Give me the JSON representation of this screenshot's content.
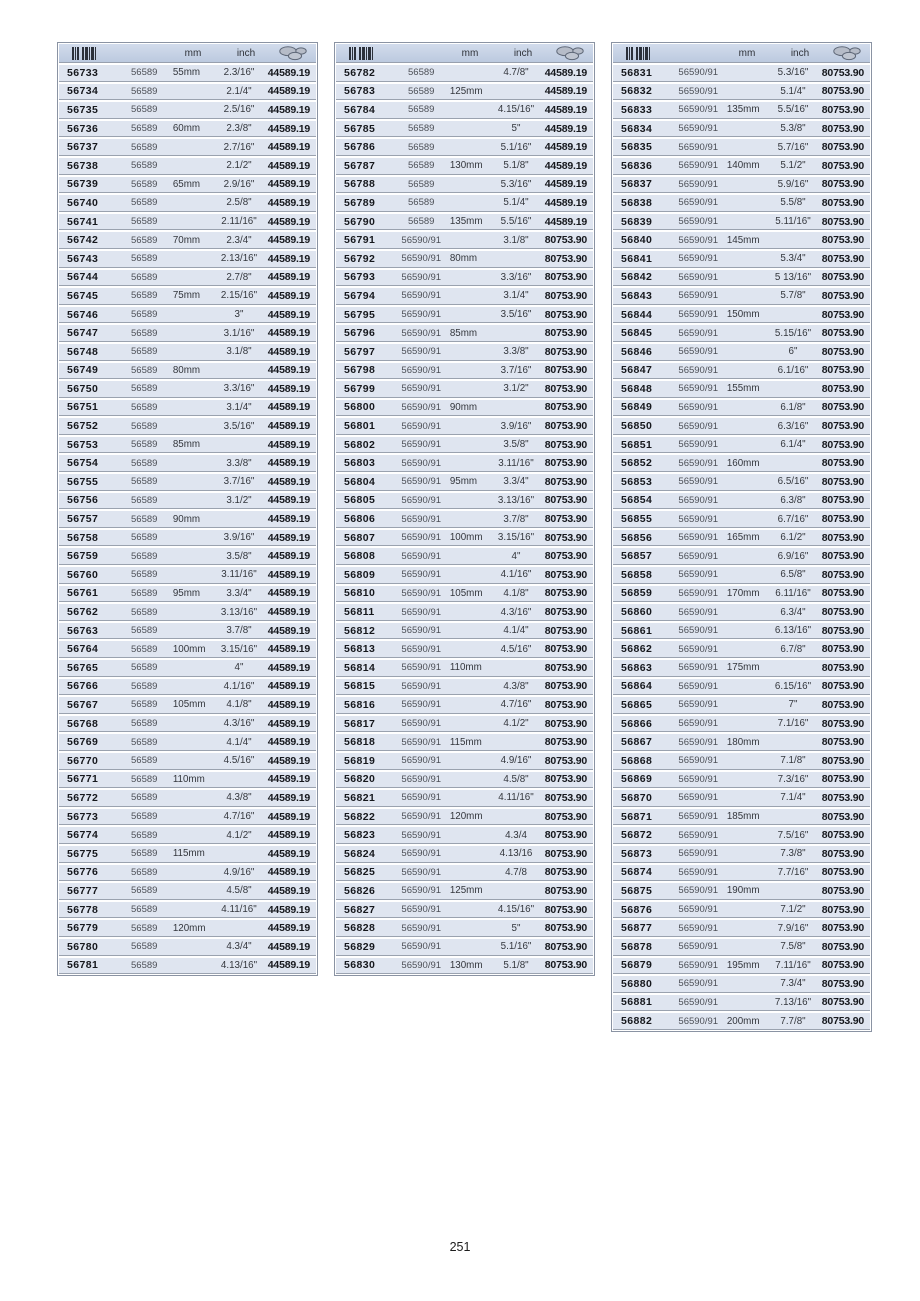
{
  "page": {
    "number": "251"
  },
  "header": {
    "mm": "mm",
    "inch": "inch"
  },
  "colors": {
    "row_bg": "#dfe5f0",
    "header_bg_top": "#d2dcec",
    "header_bg_bottom": "#bccadf",
    "table_border": "#8a93a3",
    "row_separator": "#9aa2af",
    "item_text": "#15171c",
    "ref_text": "#4c4f56"
  },
  "icons": {
    "barcode": "barcode-icon",
    "price": "coins-icon"
  },
  "tables": [
    {
      "rows": [
        [
          "56733",
          "56589",
          "55mm",
          "2.3/16\"",
          "44589.19"
        ],
        [
          "56734",
          "56589",
          "",
          "2.1/4\"",
          "44589.19"
        ],
        [
          "56735",
          "56589",
          "",
          "2.5/16\"",
          "44589.19"
        ],
        [
          "56736",
          "56589",
          "60mm",
          "2.3/8\"",
          "44589.19"
        ],
        [
          "56737",
          "56589",
          "",
          "2.7/16\"",
          "44589.19"
        ],
        [
          "56738",
          "56589",
          "",
          "2.1/2\"",
          "44589.19"
        ],
        [
          "56739",
          "56589",
          "65mm",
          "2.9/16\"",
          "44589.19"
        ],
        [
          "56740",
          "56589",
          "",
          "2.5/8\"",
          "44589.19"
        ],
        [
          "56741",
          "56589",
          "",
          "2.11/16\"",
          "44589.19"
        ],
        [
          "56742",
          "56589",
          "70mm",
          "2.3/4\"",
          "44589.19"
        ],
        [
          "56743",
          "56589",
          "",
          "2.13/16\"",
          "44589.19"
        ],
        [
          "56744",
          "56589",
          "",
          "2.7/8\"",
          "44589.19"
        ],
        [
          "56745",
          "56589",
          "75mm",
          "2.15/16\"",
          "44589.19"
        ],
        [
          "56746",
          "56589",
          "",
          "3\"",
          "44589.19"
        ],
        [
          "56747",
          "56589",
          "",
          "3.1/16\"",
          "44589.19"
        ],
        [
          "56748",
          "56589",
          "",
          "3.1/8\"",
          "44589.19"
        ],
        [
          "56749",
          "56589",
          "80mm",
          "",
          "44589.19"
        ],
        [
          "56750",
          "56589",
          "",
          "3.3/16\"",
          "44589.19"
        ],
        [
          "56751",
          "56589",
          "",
          "3.1/4\"",
          "44589.19"
        ],
        [
          "56752",
          "56589",
          "",
          "3.5/16\"",
          "44589.19"
        ],
        [
          "56753",
          "56589",
          "85mm",
          "",
          "44589.19"
        ],
        [
          "56754",
          "56589",
          "",
          "3.3/8\"",
          "44589.19"
        ],
        [
          "56755",
          "56589",
          "",
          "3.7/16\"",
          "44589.19"
        ],
        [
          "56756",
          "56589",
          "",
          "3.1/2\"",
          "44589.19"
        ],
        [
          "56757",
          "56589",
          "90mm",
          "",
          "44589.19"
        ],
        [
          "56758",
          "56589",
          "",
          "3.9/16\"",
          "44589.19"
        ],
        [
          "56759",
          "56589",
          "",
          "3.5/8\"",
          "44589.19"
        ],
        [
          "56760",
          "56589",
          "",
          "3.11/16\"",
          "44589.19"
        ],
        [
          "56761",
          "56589",
          "95mm",
          "3.3/4\"",
          "44589.19"
        ],
        [
          "56762",
          "56589",
          "",
          "3.13/16\"",
          "44589.19"
        ],
        [
          "56763",
          "56589",
          "",
          "3.7/8\"",
          "44589.19"
        ],
        [
          "56764",
          "56589",
          "100mm",
          "3.15/16\"",
          "44589.19"
        ],
        [
          "56765",
          "56589",
          "",
          "4\"",
          "44589.19"
        ],
        [
          "56766",
          "56589",
          "",
          "4.1/16\"",
          "44589.19"
        ],
        [
          "56767",
          "56589",
          "105mm",
          "4.1/8\"",
          "44589.19"
        ],
        [
          "56768",
          "56589",
          "",
          "4.3/16\"",
          "44589.19"
        ],
        [
          "56769",
          "56589",
          "",
          "4.1/4\"",
          "44589.19"
        ],
        [
          "56770",
          "56589",
          "",
          "4.5/16\"",
          "44589.19"
        ],
        [
          "56771",
          "56589",
          "110mm",
          "",
          "44589.19"
        ],
        [
          "56772",
          "56589",
          "",
          "4.3/8\"",
          "44589.19"
        ],
        [
          "56773",
          "56589",
          "",
          "4.7/16\"",
          "44589.19"
        ],
        [
          "56774",
          "56589",
          "",
          "4.1/2\"",
          "44589.19"
        ],
        [
          "56775",
          "56589",
          "115mm",
          "",
          "44589.19"
        ],
        [
          "56776",
          "56589",
          "",
          "4.9/16\"",
          "44589.19"
        ],
        [
          "56777",
          "56589",
          "",
          "4.5/8\"",
          "44589.19"
        ],
        [
          "56778",
          "56589",
          "",
          "4.11/16\"",
          "44589.19"
        ],
        [
          "56779",
          "56589",
          "120mm",
          "",
          "44589.19"
        ],
        [
          "56780",
          "56589",
          "",
          "4.3/4\"",
          "44589.19"
        ],
        [
          "56781",
          "56589",
          "",
          "4.13/16\"",
          "44589.19"
        ]
      ]
    },
    {
      "rows": [
        [
          "56782",
          "56589",
          "",
          "4.7/8\"",
          "44589.19"
        ],
        [
          "56783",
          "56589",
          "125mm",
          "",
          "44589.19"
        ],
        [
          "56784",
          "56589",
          "",
          "4.15/16\"",
          "44589.19"
        ],
        [
          "56785",
          "56589",
          "",
          "5\"",
          "44589.19"
        ],
        [
          "56786",
          "56589",
          "",
          "5.1/16\"",
          "44589.19"
        ],
        [
          "56787",
          "56589",
          "130mm",
          "5.1/8\"",
          "44589.19"
        ],
        [
          "56788",
          "56589",
          "",
          "5.3/16\"",
          "44589.19"
        ],
        [
          "56789",
          "56589",
          "",
          "5.1/4\"",
          "44589.19"
        ],
        [
          "56790",
          "56589",
          "135mm",
          "5.5/16\"",
          "44589.19"
        ],
        [
          "56791",
          "56590/91",
          "",
          "3.1/8\"",
          "80753.90"
        ],
        [
          "56792",
          "56590/91",
          "80mm",
          "",
          "80753.90"
        ],
        [
          "56793",
          "56590/91",
          "",
          "3.3/16\"",
          "80753.90"
        ],
        [
          "56794",
          "56590/91",
          "",
          "3.1/4\"",
          "80753.90"
        ],
        [
          "56795",
          "56590/91",
          "",
          "3.5/16\"",
          "80753.90"
        ],
        [
          "56796",
          "56590/91",
          "85mm",
          "",
          "80753.90"
        ],
        [
          "56797",
          "56590/91",
          "",
          "3.3/8\"",
          "80753.90"
        ],
        [
          "56798",
          "56590/91",
          "",
          "3.7/16\"",
          "80753.90"
        ],
        [
          "56799",
          "56590/91",
          "",
          "3.1/2\"",
          "80753.90"
        ],
        [
          "56800",
          "56590/91",
          "90mm",
          "",
          "80753.90"
        ],
        [
          "56801",
          "56590/91",
          "",
          "3.9/16\"",
          "80753.90"
        ],
        [
          "56802",
          "56590/91",
          "",
          "3.5/8\"",
          "80753.90"
        ],
        [
          "56803",
          "56590/91",
          "",
          "3.11/16\"",
          "80753.90"
        ],
        [
          "56804",
          "56590/91",
          "95mm",
          "3.3/4\"",
          "80753.90"
        ],
        [
          "56805",
          "56590/91",
          "",
          "3.13/16\"",
          "80753.90"
        ],
        [
          "56806",
          "56590/91",
          "",
          "3.7/8\"",
          "80753.90"
        ],
        [
          "56807",
          "56590/91",
          "100mm",
          "3.15/16\"",
          "80753.90"
        ],
        [
          "56808",
          "56590/91",
          "",
          "4\"",
          "80753.90"
        ],
        [
          "56809",
          "56590/91",
          "",
          "4.1/16\"",
          "80753.90"
        ],
        [
          "56810",
          "56590/91",
          "105mm",
          "4.1/8\"",
          "80753.90"
        ],
        [
          "56811",
          "56590/91",
          "",
          "4.3/16\"",
          "80753.90"
        ],
        [
          "56812",
          "56590/91",
          "",
          "4.1/4\"",
          "80753.90"
        ],
        [
          "56813",
          "56590/91",
          "",
          "4.5/16\"",
          "80753.90"
        ],
        [
          "56814",
          "56590/91",
          "110mm",
          "",
          "80753.90"
        ],
        [
          "56815",
          "56590/91",
          "",
          "4.3/8\"",
          "80753.90"
        ],
        [
          "56816",
          "56590/91",
          "",
          "4.7/16\"",
          "80753.90"
        ],
        [
          "56817",
          "56590/91",
          "",
          "4.1/2\"",
          "80753.90"
        ],
        [
          "56818",
          "56590/91",
          "115mm",
          "",
          "80753.90"
        ],
        [
          "56819",
          "56590/91",
          "",
          "4.9/16\"",
          "80753.90"
        ],
        [
          "56820",
          "56590/91",
          "",
          "4.5/8\"",
          "80753.90"
        ],
        [
          "56821",
          "56590/91",
          "",
          "4.11/16\"",
          "80753.90"
        ],
        [
          "56822",
          "56590/91",
          "120mm",
          "",
          "80753.90"
        ],
        [
          "56823",
          "56590/91",
          "",
          "4.3/4",
          "80753.90"
        ],
        [
          "56824",
          "56590/91",
          "",
          "4.13/16",
          "80753.90"
        ],
        [
          "56825",
          "56590/91",
          "",
          "4.7/8",
          "80753.90"
        ],
        [
          "56826",
          "56590/91",
          "125mm",
          "",
          "80753.90"
        ],
        [
          "56827",
          "56590/91",
          "",
          "4.15/16\"",
          "80753.90"
        ],
        [
          "56828",
          "56590/91",
          "",
          "5\"",
          "80753.90"
        ],
        [
          "56829",
          "56590/91",
          "",
          "5.1/16\"",
          "80753.90"
        ],
        [
          "56830",
          "56590/91",
          "130mm",
          "5.1/8\"",
          "80753.90"
        ]
      ]
    },
    {
      "rows": [
        [
          "56831",
          "56590/91",
          "",
          "5.3/16\"",
          "80753.90"
        ],
        [
          "56832",
          "56590/91",
          "",
          "5.1/4\"",
          "80753.90"
        ],
        [
          "56833",
          "56590/91",
          "135mm",
          "5.5/16\"",
          "80753.90"
        ],
        [
          "56834",
          "56590/91",
          "",
          "5.3/8\"",
          "80753.90"
        ],
        [
          "56835",
          "56590/91",
          "",
          "5.7/16\"",
          "80753.90"
        ],
        [
          "56836",
          "56590/91",
          "140mm",
          "5.1/2\"",
          "80753.90"
        ],
        [
          "56837",
          "56590/91",
          "",
          "5.9/16\"",
          "80753.90"
        ],
        [
          "56838",
          "56590/91",
          "",
          "5.5/8\"",
          "80753.90"
        ],
        [
          "56839",
          "56590/91",
          "",
          "5.11/16\"",
          "80753.90"
        ],
        [
          "56840",
          "56590/91",
          "145mm",
          "",
          "80753.90"
        ],
        [
          "56841",
          "56590/91",
          "",
          "5.3/4\"",
          "80753.90"
        ],
        [
          "56842",
          "56590/91",
          "",
          "5 13/16\"",
          "80753.90"
        ],
        [
          "56843",
          "56590/91",
          "",
          "5.7/8\"",
          "80753.90"
        ],
        [
          "56844",
          "56590/91",
          "150mm",
          "",
          "80753.90"
        ],
        [
          "56845",
          "56590/91",
          "",
          "5.15/16\"",
          "80753.90"
        ],
        [
          "56846",
          "56590/91",
          "",
          "6\"",
          "80753.90"
        ],
        [
          "56847",
          "56590/91",
          "",
          "6.1/16\"",
          "80753.90"
        ],
        [
          "56848",
          "56590/91",
          "155mm",
          "",
          "80753.90"
        ],
        [
          "56849",
          "56590/91",
          "",
          "6.1/8\"",
          "80753.90"
        ],
        [
          "56850",
          "56590/91",
          "",
          "6.3/16\"",
          "80753.90"
        ],
        [
          "56851",
          "56590/91",
          "",
          "6.1/4\"",
          "80753.90"
        ],
        [
          "56852",
          "56590/91",
          "160mm",
          "",
          "80753.90"
        ],
        [
          "56853",
          "56590/91",
          "",
          "6.5/16\"",
          "80753.90"
        ],
        [
          "56854",
          "56590/91",
          "",
          "6.3/8\"",
          "80753.90"
        ],
        [
          "56855",
          "56590/91",
          "",
          "6.7/16\"",
          "80753.90"
        ],
        [
          "56856",
          "56590/91",
          "165mm",
          "6.1/2\"",
          "80753.90"
        ],
        [
          "56857",
          "56590/91",
          "",
          "6.9/16\"",
          "80753.90"
        ],
        [
          "56858",
          "56590/91",
          "",
          "6.5/8\"",
          "80753.90"
        ],
        [
          "56859",
          "56590/91",
          "170mm",
          "6.11/16\"",
          "80753.90"
        ],
        [
          "56860",
          "56590/91",
          "",
          "6.3/4\"",
          "80753.90"
        ],
        [
          "56861",
          "56590/91",
          "",
          "6.13/16\"",
          "80753.90"
        ],
        [
          "56862",
          "56590/91",
          "",
          "6.7/8\"",
          "80753.90"
        ],
        [
          "56863",
          "56590/91",
          "175mm",
          "",
          "80753.90"
        ],
        [
          "56864",
          "56590/91",
          "",
          "6.15/16\"",
          "80753.90"
        ],
        [
          "56865",
          "56590/91",
          "",
          "7\"",
          "80753.90"
        ],
        [
          "56866",
          "56590/91",
          "",
          "7.1/16\"",
          "80753.90"
        ],
        [
          "56867",
          "56590/91",
          "180mm",
          "",
          "80753.90"
        ],
        [
          "56868",
          "56590/91",
          "",
          "7.1/8\"",
          "80753.90"
        ],
        [
          "56869",
          "56590/91",
          "",
          "7.3/16\"",
          "80753.90"
        ],
        [
          "56870",
          "56590/91",
          "",
          "7.1/4\"",
          "80753.90"
        ],
        [
          "56871",
          "56590/91",
          "185mm",
          "",
          "80753.90"
        ],
        [
          "56872",
          "56590/91",
          "",
          "7.5/16\"",
          "80753.90"
        ],
        [
          "56873",
          "56590/91",
          "",
          "7.3/8\"",
          "80753.90"
        ],
        [
          "56874",
          "56590/91",
          "",
          "7.7/16\"",
          "80753.90"
        ],
        [
          "56875",
          "56590/91",
          "190mm",
          "",
          "80753.90"
        ],
        [
          "56876",
          "56590/91",
          "",
          "7.1/2\"",
          "80753.90"
        ],
        [
          "56877",
          "56590/91",
          "",
          "7.9/16\"",
          "80753.90"
        ],
        [
          "56878",
          "56590/91",
          "",
          "7.5/8\"",
          "80753.90"
        ],
        [
          "56879",
          "56590/91",
          "195mm",
          "7.11/16\"",
          "80753.90"
        ],
        [
          "56880",
          "56590/91",
          "",
          "7.3/4\"",
          "80753.90"
        ],
        [
          "56881",
          "56590/91",
          "",
          "7.13/16\"",
          "80753.90"
        ],
        [
          "56882",
          "56590/91",
          "200mm",
          "7.7/8\"",
          "80753.90"
        ]
      ]
    }
  ]
}
